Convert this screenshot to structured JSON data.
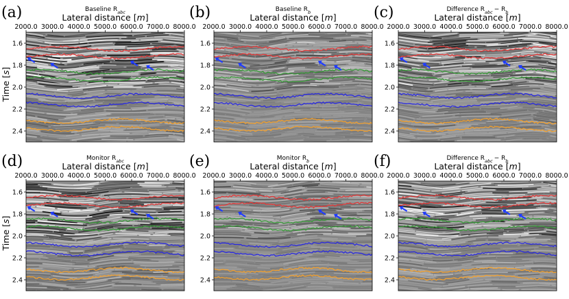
{
  "figure": {
    "panels": [
      {
        "letter": "(a)",
        "title": "Baseline R",
        "title_sub": "abc",
        "title_suffix": "",
        "seed": 11,
        "contrast": 1.0
      },
      {
        "letter": "(b)",
        "title": "Baseline R",
        "title_sub": "b",
        "title_suffix": "",
        "seed": 23,
        "contrast": 0.55
      },
      {
        "letter": "(c)",
        "title": "Difference R",
        "title_sub": "abc",
        "title_suffix": "− R",
        "title_sub2": "b",
        "seed": 37,
        "contrast": 0.9
      },
      {
        "letter": "(d)",
        "title": "Monitor R",
        "title_sub": "abc",
        "title_suffix": "",
        "seed": 41,
        "contrast": 1.0
      },
      {
        "letter": "(e)",
        "title": "Monitor R",
        "title_sub": "b",
        "title_suffix": "",
        "seed": 53,
        "contrast": 0.55
      },
      {
        "letter": "(f)",
        "title": "Difference R",
        "title_sub": "abc",
        "title_suffix": "− R",
        "title_sub2": "b",
        "seed": 67,
        "contrast": 0.9
      }
    ],
    "xaxis": {
      "label": "Lateral distance [m]",
      "label_prefix": "Lateral distance [",
      "label_var": "m",
      "label_suffix": "]",
      "range": [
        2000,
        8000
      ],
      "ticks": [
        2000,
        3000,
        4000,
        5000,
        6000,
        7000,
        8000
      ],
      "tick_labels": [
        "2000.0",
        "3000.0",
        "4000.0",
        "5000.0",
        "6000.0",
        "7000.0",
        "8000.0"
      ]
    },
    "yaxis": {
      "label": "Time [s]",
      "label_prefix": "Time [",
      "label_var": "s",
      "label_suffix": "]",
      "range": [
        1.5,
        2.5
      ],
      "ticks": [
        1.6,
        1.8,
        2.0,
        2.2,
        2.4
      ],
      "tick_labels": [
        "1.6",
        "1.8",
        "2.0",
        "2.2",
        "2.4"
      ]
    },
    "horizons": [
      {
        "name": "red",
        "color": "#e23b3b",
        "times": [
          1.65,
          1.72
        ]
      },
      {
        "name": "green",
        "color": "#3a9a3a",
        "times": [
          1.86,
          1.93
        ]
      },
      {
        "name": "blue",
        "color": "#2a2ae0",
        "times": [
          2.08,
          2.16
        ]
      },
      {
        "name": "orange",
        "color": "#f0a030",
        "times": [
          2.31,
          2.38
        ]
      }
    ],
    "arrows": [
      {
        "x": 2150,
        "t": 1.75,
        "dir": "left"
      },
      {
        "x": 3020,
        "t": 1.8,
        "dir": "left"
      },
      {
        "x": 6050,
        "t": 1.78,
        "dir": "left"
      },
      {
        "x": 6650,
        "t": 1.82,
        "dir": "left"
      }
    ],
    "arrow_color": "#1f3cff"
  }
}
